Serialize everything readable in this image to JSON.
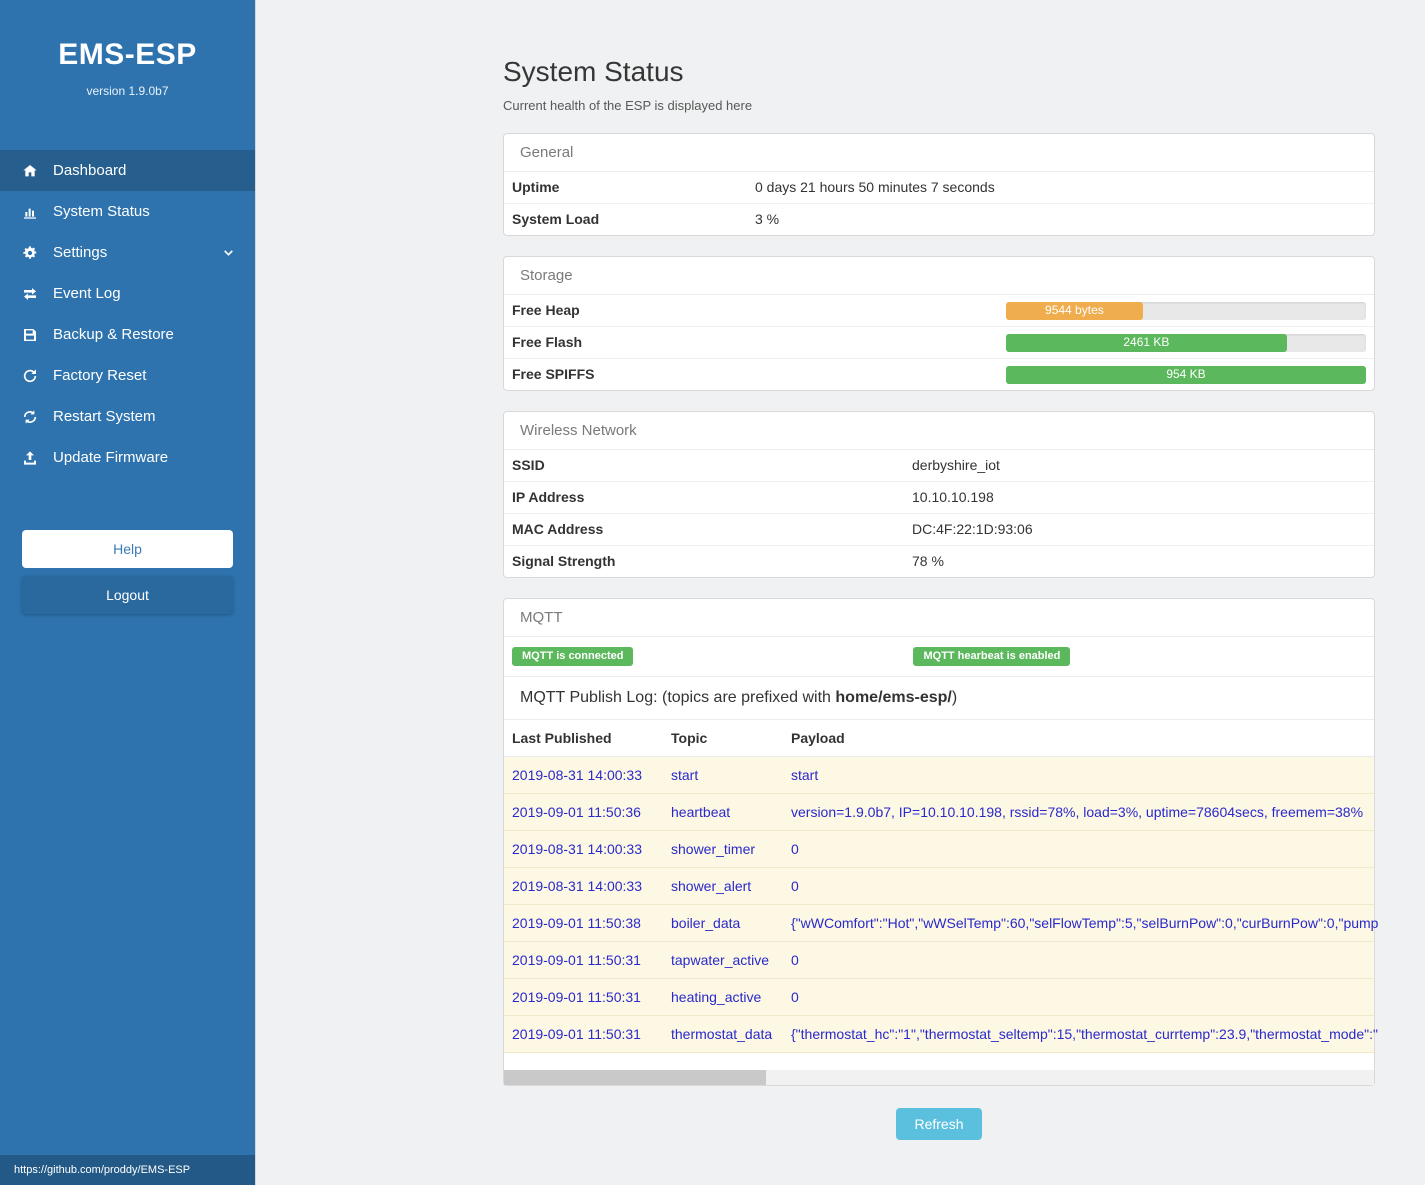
{
  "sidebar": {
    "title": "EMS-ESP",
    "version": "version 1.9.0b7",
    "items": [
      {
        "label": "Dashboard",
        "icon": "home-icon",
        "active": true
      },
      {
        "label": "System Status",
        "icon": "chart-icon"
      },
      {
        "label": "Settings",
        "icon": "gear-icon",
        "chevron": true
      },
      {
        "label": "Event Log",
        "icon": "exchange-icon"
      },
      {
        "label": "Backup & Restore",
        "icon": "save-icon"
      },
      {
        "label": "Factory Reset",
        "icon": "redo-icon"
      },
      {
        "label": "Restart System",
        "icon": "sync-icon"
      },
      {
        "label": "Update Firmware",
        "icon": "upload-icon"
      }
    ],
    "help_label": "Help",
    "logout_label": "Logout",
    "footer_link": "https://github.com/proddy/EMS-ESP"
  },
  "page": {
    "title": "System Status",
    "subtitle": "Current health of the ESP is displayed here"
  },
  "general": {
    "header": "General",
    "rows": [
      {
        "label": "Uptime",
        "value": "0 days 21 hours 50 minutes 7 seconds"
      },
      {
        "label": "System Load",
        "value": "3 %"
      }
    ]
  },
  "storage": {
    "header": "Storage",
    "rows": [
      {
        "label": "Free Heap",
        "bar": {
          "label": "9544 bytes",
          "percent": 38,
          "color": "#f0ad4e"
        }
      },
      {
        "label": "Free Flash",
        "bar": {
          "label": "2461 KB",
          "percent": 78,
          "color": "#5cb85c"
        }
      },
      {
        "label": "Free SPIFFS",
        "bar": {
          "label": "954 KB",
          "percent": 100,
          "color": "#5cb85c"
        }
      }
    ]
  },
  "wireless": {
    "header": "Wireless Network",
    "rows": [
      {
        "label": "SSID",
        "value": "derbyshire_iot"
      },
      {
        "label": "IP Address",
        "value": "10.10.10.198"
      },
      {
        "label": "MAC Address",
        "value": "DC:4F:22:1D:93:06"
      },
      {
        "label": "Signal Strength",
        "value": "78 %"
      }
    ]
  },
  "mqtt": {
    "header": "MQTT",
    "badges": [
      "MQTT is connected",
      "MQTT hearbeat is enabled"
    ],
    "publish_log": {
      "prefix": "MQTT Publish Log: (topics are prefixed with ",
      "bold": "home/ems-esp/",
      "suffix": ")"
    },
    "columns": [
      "Last Published",
      "Topic",
      "Payload"
    ],
    "rows": [
      {
        "published": "2019-08-31 14:00:33",
        "topic": "start",
        "payload": "start"
      },
      {
        "published": "2019-09-01 11:50:36",
        "topic": "heartbeat",
        "payload": "version=1.9.0b7, IP=10.10.10.198, rssid=78%, load=3%, uptime=78604secs, freemem=38%"
      },
      {
        "published": "2019-08-31 14:00:33",
        "topic": "shower_timer",
        "payload": "0"
      },
      {
        "published": "2019-08-31 14:00:33",
        "topic": "shower_alert",
        "payload": "0"
      },
      {
        "published": "2019-09-01 11:50:38",
        "topic": "boiler_data",
        "payload": "{\"wWComfort\":\"Hot\",\"wWSelTemp\":60,\"selFlowTemp\":5,\"selBurnPow\":0,\"curBurnPow\":0,\"pump"
      },
      {
        "published": "2019-09-01 11:50:31",
        "topic": "tapwater_active",
        "payload": "0"
      },
      {
        "published": "2019-09-01 11:50:31",
        "topic": "heating_active",
        "payload": "0"
      },
      {
        "published": "2019-09-01 11:50:31",
        "topic": "thermostat_data",
        "payload": "{\"thermostat_hc\":\"1\",\"thermostat_seltemp\":15,\"thermostat_currtemp\":23.9,\"thermostat_mode\":\""
      }
    ]
  },
  "refresh_label": "Refresh",
  "colors": {
    "sidebar_blue": "#2e73ad",
    "active_item_blue": "#265e8e",
    "badge_green": "#5cb85c",
    "heap_bar_orange": "#f0ad4e",
    "flash_bar_green": "#5cb85c",
    "refresh_button_blue": "#5bc0de",
    "log_link_blue": "#2929cc",
    "log_row_yellow": "#fdf8e3"
  }
}
